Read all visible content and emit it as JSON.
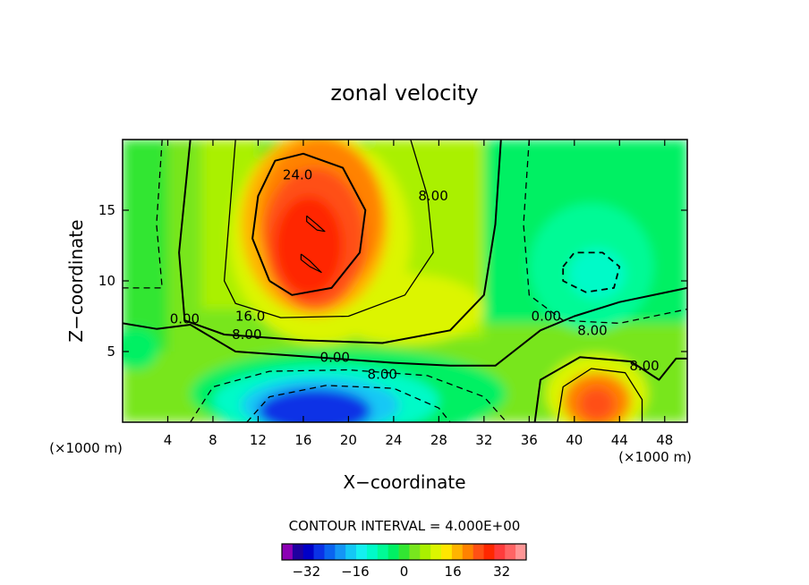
{
  "chart_data": {
    "type": "contour",
    "title": "zonal velocity",
    "xlabel": "X−coordinate",
    "ylabel": "Z−coordinate",
    "x_unit_left": "(×1000 m)",
    "x_unit_right": "(×1000 m)",
    "xlim": [
      0,
      50
    ],
    "ylim": [
      0,
      20
    ],
    "x_ticks": [
      4,
      8,
      12,
      16,
      20,
      24,
      28,
      32,
      36,
      40,
      44,
      48
    ],
    "y_ticks": [
      5,
      10,
      15
    ],
    "contour_interval_text": "CONTOUR INTERVAL = 4.000E+00",
    "contour_interval": 4,
    "colorbar": {
      "levels_min": -40,
      "levels_max": 40,
      "tick_values": [
        -32,
        -16,
        0,
        16,
        32
      ],
      "tick_labels": [
        "−32",
        "−16",
        "0",
        "16",
        "32"
      ],
      "colors": [
        "#8c00b4",
        "#1e00a0",
        "#0000c8",
        "#0a32e6",
        "#0a64f0",
        "#1496f5",
        "#14c8f5",
        "#14f0f0",
        "#00fac8",
        "#00fa96",
        "#00f064",
        "#32e632",
        "#78e61e",
        "#aaf000",
        "#dcf500",
        "#ffe600",
        "#ffb400",
        "#ff8200",
        "#ff5014",
        "#ff2800",
        "#ff3c3c",
        "#ff6464",
        "#ff9696"
      ]
    },
    "contour_labels": [
      {
        "text": "24.0",
        "x": 15.5,
        "y": 17.5
      },
      {
        "text": "8.00",
        "x": 27.5,
        "y": 16.0
      },
      {
        "text": "16.0",
        "x": 11.3,
        "y": 7.5
      },
      {
        "text": "8.00",
        "x": 11.0,
        "y": 6.2
      },
      {
        "text": "0.00",
        "x": 5.5,
        "y": 7.3
      },
      {
        "text": "0.00",
        "x": 18.8,
        "y": 4.6
      },
      {
        "text": "8.00",
        "x": 23.0,
        "y": 3.4
      },
      {
        "text": "0.00",
        "x": 37.5,
        "y": 7.5
      },
      {
        "text": "8.00",
        "x": 41.6,
        "y": 6.5
      },
      {
        "text": "8.00",
        "x": 46.2,
        "y": 4.0
      }
    ],
    "features": [
      {
        "kind": "max",
        "x": 16.5,
        "y": 12.5,
        "value_approx": 30
      },
      {
        "kind": "min",
        "x": 16.5,
        "y": 1.0,
        "value_approx": -30
      },
      {
        "kind": "max",
        "x": 42.0,
        "y": 1.5,
        "value_approx": 26
      },
      {
        "kind": "min",
        "x": 41.5,
        "y": 10.5,
        "value_approx": -10
      }
    ]
  }
}
